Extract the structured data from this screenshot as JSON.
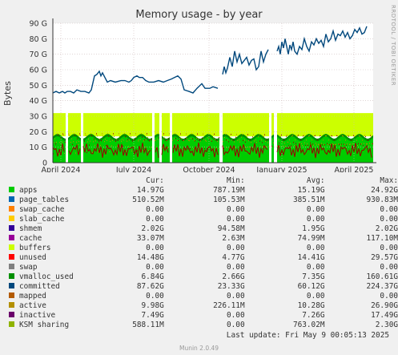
{
  "side_label": "RRDTOOL / TOBI OETIKER",
  "chart_data": {
    "type": "area",
    "title": "Memory usage - by year",
    "ylabel": "Bytes",
    "ylim": [
      0,
      90
    ],
    "y_unit": "G",
    "y_ticks": [
      "0",
      "10 G",
      "20 G",
      "30 G",
      "40 G",
      "50 G",
      "60 G",
      "70 G",
      "80 G",
      "90 G"
    ],
    "x_ticks": [
      "April 2024",
      "July 2024",
      "October 2024",
      "January 2025",
      "April 2025"
    ],
    "grid": true,
    "series_levels": {
      "apps": 15,
      "shmem": 2,
      "unused_top": 32,
      "committed": [
        [
          0,
          45
        ],
        [
          4,
          46
        ],
        [
          8,
          45
        ],
        [
          12,
          46
        ],
        [
          15,
          45
        ],
        [
          18,
          46
        ],
        [
          22,
          46
        ],
        [
          26,
          45
        ],
        [
          30,
          47
        ],
        [
          35,
          46
        ],
        [
          40,
          46
        ],
        [
          45,
          45
        ],
        [
          48,
          47
        ],
        [
          52,
          56
        ],
        [
          55,
          57
        ],
        [
          58,
          59
        ],
        [
          60,
          56
        ],
        [
          62,
          58
        ],
        [
          65,
          55
        ],
        [
          68,
          52
        ],
        [
          72,
          53
        ],
        [
          78,
          52
        ],
        [
          85,
          53
        ],
        [
          90,
          53
        ],
        [
          95,
          52
        ],
        [
          98,
          53
        ],
        [
          101,
          55
        ],
        [
          105,
          56
        ],
        [
          108,
          55
        ],
        [
          112,
          55
        ],
        [
          116,
          53
        ],
        [
          120,
          52
        ],
        [
          126,
          52
        ],
        [
          132,
          53
        ],
        [
          138,
          52
        ],
        [
          143,
          53
        ],
        [
          148,
          54
        ],
        [
          152,
          55
        ],
        [
          156,
          56
        ],
        [
          160,
          54
        ],
        [
          164,
          47
        ],
        [
          170,
          46
        ],
        [
          175,
          45
        ],
        [
          180,
          48
        ],
        [
          186,
          51
        ],
        [
          190,
          48
        ],
        [
          196,
          48
        ],
        [
          200,
          49
        ],
        [
          206,
          48
        ]
      ],
      "committed_2": [
        [
          212,
          57
        ],
        [
          214,
          62
        ],
        [
          216,
          58
        ],
        [
          218,
          61
        ],
        [
          221,
          68
        ],
        [
          224,
          62
        ],
        [
          227,
          72
        ],
        [
          230,
          65
        ],
        [
          233,
          70
        ],
        [
          236,
          64
        ],
        [
          239,
          66
        ],
        [
          242,
          68
        ],
        [
          245,
          63
        ],
        [
          248,
          66
        ],
        [
          251,
          67
        ],
        [
          254,
          60
        ],
        [
          257,
          62
        ],
        [
          260,
          72
        ],
        [
          263,
          65
        ],
        [
          266,
          70
        ],
        [
          269,
          73
        ]
      ],
      "committed_3": [
        [
          280,
          72
        ],
        [
          282,
          75
        ],
        [
          284,
          70
        ],
        [
          286,
          78
        ],
        [
          288,
          74
        ],
        [
          290,
          80
        ],
        [
          292,
          75
        ],
        [
          294,
          70
        ],
        [
          296,
          76
        ],
        [
          298,
          73
        ],
        [
          300,
          78
        ],
        [
          302,
          72
        ],
        [
          305,
          70
        ],
        [
          308,
          75
        ],
        [
          311,
          73
        ],
        [
          314,
          80
        ],
        [
          317,
          75
        ],
        [
          320,
          72
        ],
        [
          323,
          78
        ],
        [
          326,
          76
        ],
        [
          329,
          80
        ],
        [
          332,
          77
        ],
        [
          335,
          79
        ],
        [
          338,
          75
        ],
        [
          341,
          83
        ],
        [
          344,
          78
        ],
        [
          347,
          80
        ],
        [
          350,
          85
        ],
        [
          353,
          79
        ],
        [
          356,
          83
        ],
        [
          359,
          82
        ],
        [
          362,
          85
        ],
        [
          365,
          81
        ],
        [
          368,
          84
        ],
        [
          371,
          80
        ],
        [
          374,
          82
        ],
        [
          377,
          86
        ],
        [
          380,
          84
        ],
        [
          383,
          87
        ],
        [
          386,
          83
        ],
        [
          389,
          84
        ],
        [
          392,
          88
        ]
      ],
      "gaps": [
        [
          16,
          18
        ],
        [
          35,
          37
        ],
        [
          124,
          126
        ],
        [
          133,
          135
        ],
        [
          146,
          148
        ],
        [
          208,
          211
        ],
        [
          270,
          272
        ],
        [
          276,
          279
        ]
      ]
    },
    "legend_headers": [
      "Cur:",
      "Min:",
      "Avg:",
      "Max:"
    ],
    "legend": [
      {
        "name": "apps",
        "color": "#00CC00",
        "cur": "14.97G",
        "min": "787.19M",
        "avg": "15.19G",
        "max": "24.92G"
      },
      {
        "name": "page_tables",
        "color": "#0066B3",
        "cur": "510.52M",
        "min": "105.53M",
        "avg": "385.51M",
        "max": "930.83M"
      },
      {
        "name": "swap_cache",
        "color": "#FF8000",
        "cur": "0.00",
        "min": "0.00",
        "avg": "0.00",
        "max": "0.00"
      },
      {
        "name": "slab_cache",
        "color": "#FFCC00",
        "cur": "0.00",
        "min": "0.00",
        "avg": "0.00",
        "max": "0.00"
      },
      {
        "name": "shmem",
        "color": "#330099",
        "cur": "2.02G",
        "min": "94.58M",
        "avg": "1.95G",
        "max": "2.02G"
      },
      {
        "name": "cache",
        "color": "#990099",
        "cur": "33.07M",
        "min": "2.63M",
        "avg": "74.99M",
        "max": "117.10M"
      },
      {
        "name": "buffers",
        "color": "#CCFF00",
        "cur": "0.00",
        "min": "0.00",
        "avg": "0.00",
        "max": "0.00"
      },
      {
        "name": "unused",
        "color": "#FF0000",
        "cur": "14.48G",
        "min": "4.77G",
        "avg": "14.41G",
        "max": "29.57G"
      },
      {
        "name": "swap",
        "color": "#808080",
        "cur": "0.00",
        "min": "0.00",
        "avg": "0.00",
        "max": "0.00"
      },
      {
        "name": "vmalloc_used",
        "color": "#008F00",
        "cur": "6.84G",
        "min": "2.66G",
        "avg": "7.35G",
        "max": "160.61G"
      },
      {
        "name": "committed",
        "color": "#00487D",
        "cur": "87.62G",
        "min": "23.33G",
        "avg": "60.12G",
        "max": "224.37G"
      },
      {
        "name": "mapped",
        "color": "#B35A00",
        "cur": "0.00",
        "min": "0.00",
        "avg": "0.00",
        "max": "0.00"
      },
      {
        "name": "active",
        "color": "#B38F00",
        "cur": "9.98G",
        "min": "226.11M",
        "avg": "10.28G",
        "max": "26.90G"
      },
      {
        "name": "inactive",
        "color": "#6B006B",
        "cur": "7.49G",
        "min": "0.00",
        "avg": "7.26G",
        "max": "17.49G"
      },
      {
        "name": "KSM sharing",
        "color": "#8FB300",
        "cur": "588.11M",
        "min": "0.00",
        "avg": "763.02M",
        "max": "2.30G"
      }
    ],
    "last_update": "Last update: Fri May  9 00:05:13 2025",
    "footer": "Munin 2.0.49"
  }
}
